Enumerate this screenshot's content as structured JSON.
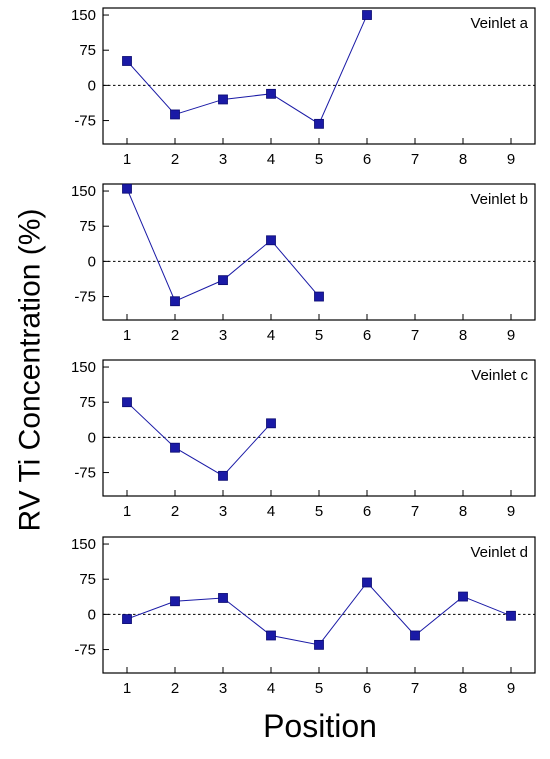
{
  "figure": {
    "ylabel": "RV Ti Concentration (%)",
    "xlabel": "Position"
  },
  "chart_data": [
    {
      "type": "line",
      "title": "Veinlet a",
      "x": [
        1,
        2,
        3,
        4,
        5,
        6
      ],
      "values": [
        52,
        -62,
        -30,
        -18,
        -82,
        150
      ],
      "xticks": [
        1,
        2,
        3,
        4,
        5,
        6,
        7,
        8,
        9
      ],
      "yticks": [
        -75,
        0,
        75,
        150
      ],
      "xlim": [
        0.5,
        9.5
      ],
      "ylim": [
        -125,
        165
      ],
      "reference_line_y": 0,
      "color": "#1a1aa6"
    },
    {
      "type": "line",
      "title": "Veinlet b",
      "x": [
        1,
        2,
        3,
        4,
        5
      ],
      "values": [
        155,
        -85,
        -40,
        45,
        -75
      ],
      "xticks": [
        1,
        2,
        3,
        4,
        5,
        6,
        7,
        8,
        9
      ],
      "yticks": [
        -75,
        0,
        75,
        150
      ],
      "xlim": [
        0.5,
        9.5
      ],
      "ylim": [
        -125,
        165
      ],
      "reference_line_y": 0,
      "color": "#1a1aa6"
    },
    {
      "type": "line",
      "title": "Veinlet c",
      "x": [
        1,
        2,
        3,
        4
      ],
      "values": [
        75,
        -22,
        -82,
        30
      ],
      "xticks": [
        1,
        2,
        3,
        4,
        5,
        6,
        7,
        8,
        9
      ],
      "yticks": [
        -75,
        0,
        75,
        150
      ],
      "xlim": [
        0.5,
        9.5
      ],
      "ylim": [
        -125,
        165
      ],
      "reference_line_y": 0,
      "color": "#1a1aa6"
    },
    {
      "type": "line",
      "title": "Veinlet d",
      "x": [
        1,
        2,
        3,
        4,
        5,
        6,
        7,
        8,
        9
      ],
      "values": [
        -10,
        28,
        35,
        -45,
        -65,
        68,
        -45,
        38,
        -3
      ],
      "xticks": [
        1,
        2,
        3,
        4,
        5,
        6,
        7,
        8,
        9
      ],
      "yticks": [
        -75,
        0,
        75,
        150
      ],
      "xlim": [
        0.5,
        9.5
      ],
      "ylim": [
        -125,
        165
      ],
      "reference_line_y": 0,
      "color": "#1a1aa6"
    }
  ]
}
